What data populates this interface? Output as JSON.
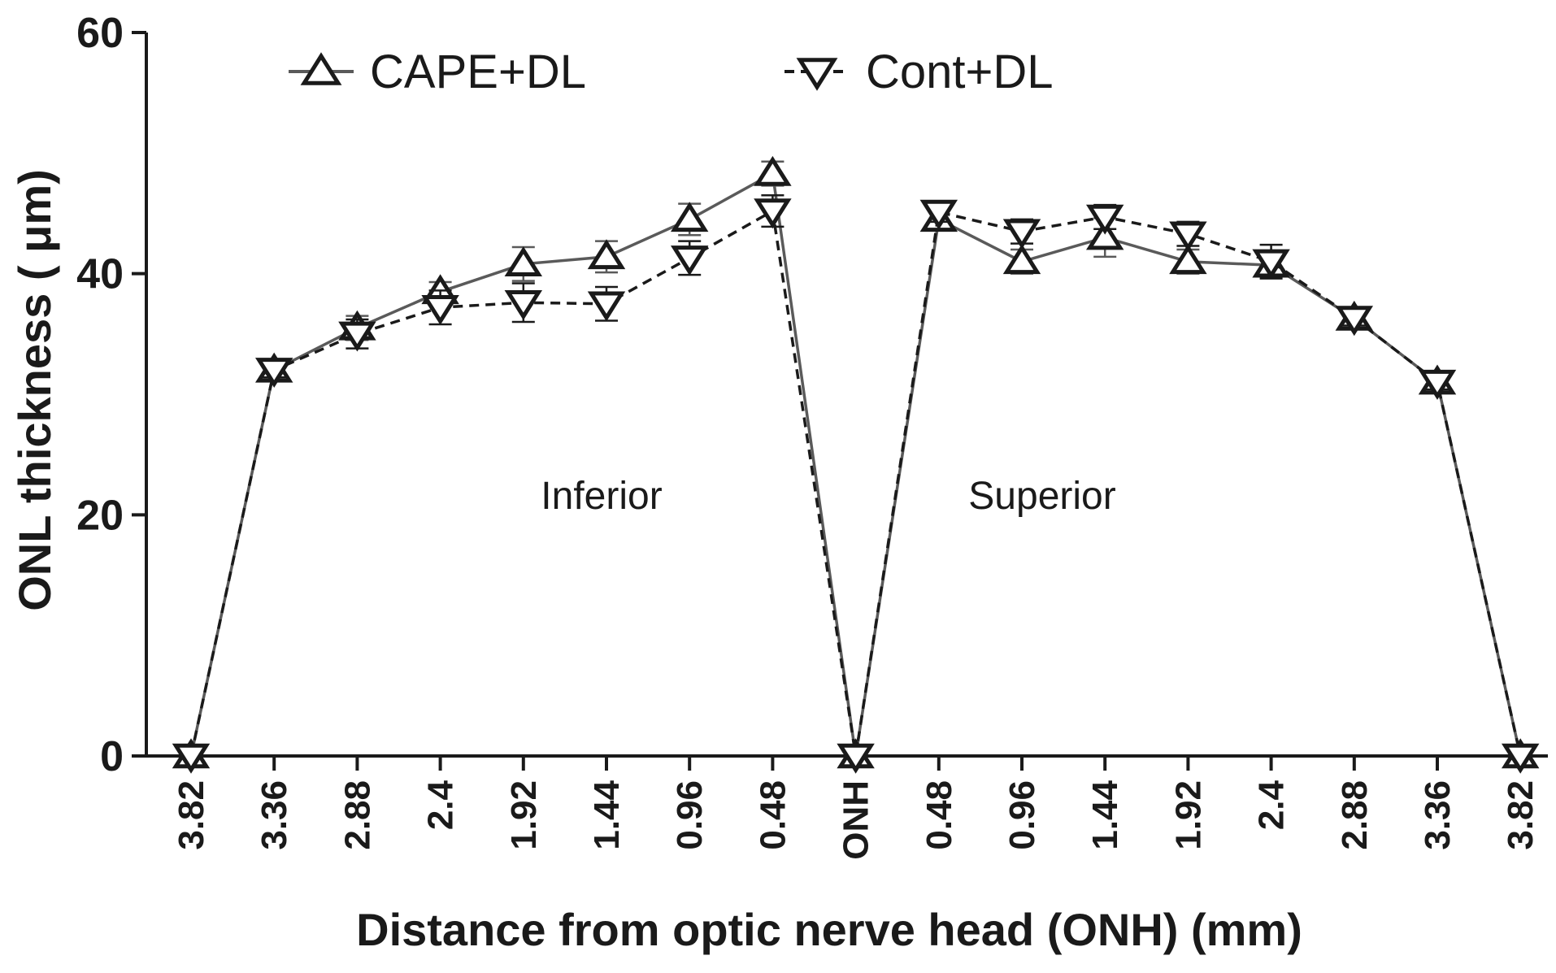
{
  "chart_data": {
    "type": "line",
    "xlabel": "Distance from optic nerve head (ONH) (mm)",
    "ylabel": "ONL thickness ( μm)",
    "ylim": [
      0,
      60
    ],
    "yticks": [
      "0",
      "20",
      "40",
      "60"
    ],
    "categories": [
      "3.82",
      "3.36",
      "2.88",
      "2.4",
      "1.92",
      "1.44",
      "0.96",
      "0.48",
      "ONH",
      "0.48",
      "0.96",
      "1.44",
      "1.92",
      "2.4",
      "2.88",
      "3.36",
      "3.82"
    ],
    "series": [
      {
        "name": "CAPE+DL",
        "marker": "triangle-up",
        "line": "solid",
        "color": "#5a5a5a",
        "values": [
          0,
          32,
          35.5,
          38.5,
          40.8,
          41.4,
          44.5,
          48.3,
          0,
          44.5,
          41,
          43,
          41,
          40.7,
          36.3,
          31,
          0
        ],
        "errors": [
          0,
          0.6,
          1.0,
          0.8,
          1.4,
          1.3,
          1.3,
          1.0,
          0,
          0.8,
          1.0,
          1.6,
          1.0,
          0.8,
          0.6,
          0.6,
          0
        ]
      },
      {
        "name": "Cont+DL",
        "marker": "triangle-down",
        "line": "dashed",
        "color": "#1a1a1a",
        "values": [
          0,
          32,
          35,
          37.2,
          37.6,
          37.5,
          41.3,
          45.2,
          0,
          45.1,
          43.5,
          44.7,
          43.3,
          41,
          36.3,
          31,
          0
        ],
        "errors": [
          0,
          0.6,
          1.2,
          1.4,
          1.6,
          1.4,
          1.4,
          1.3,
          0,
          0.8,
          1.0,
          1.0,
          1.0,
          1.4,
          0.6,
          0.6,
          0
        ]
      }
    ],
    "annotations": [
      "Inferior",
      "Superior"
    ],
    "legend_position": "top",
    "grid": false
  }
}
